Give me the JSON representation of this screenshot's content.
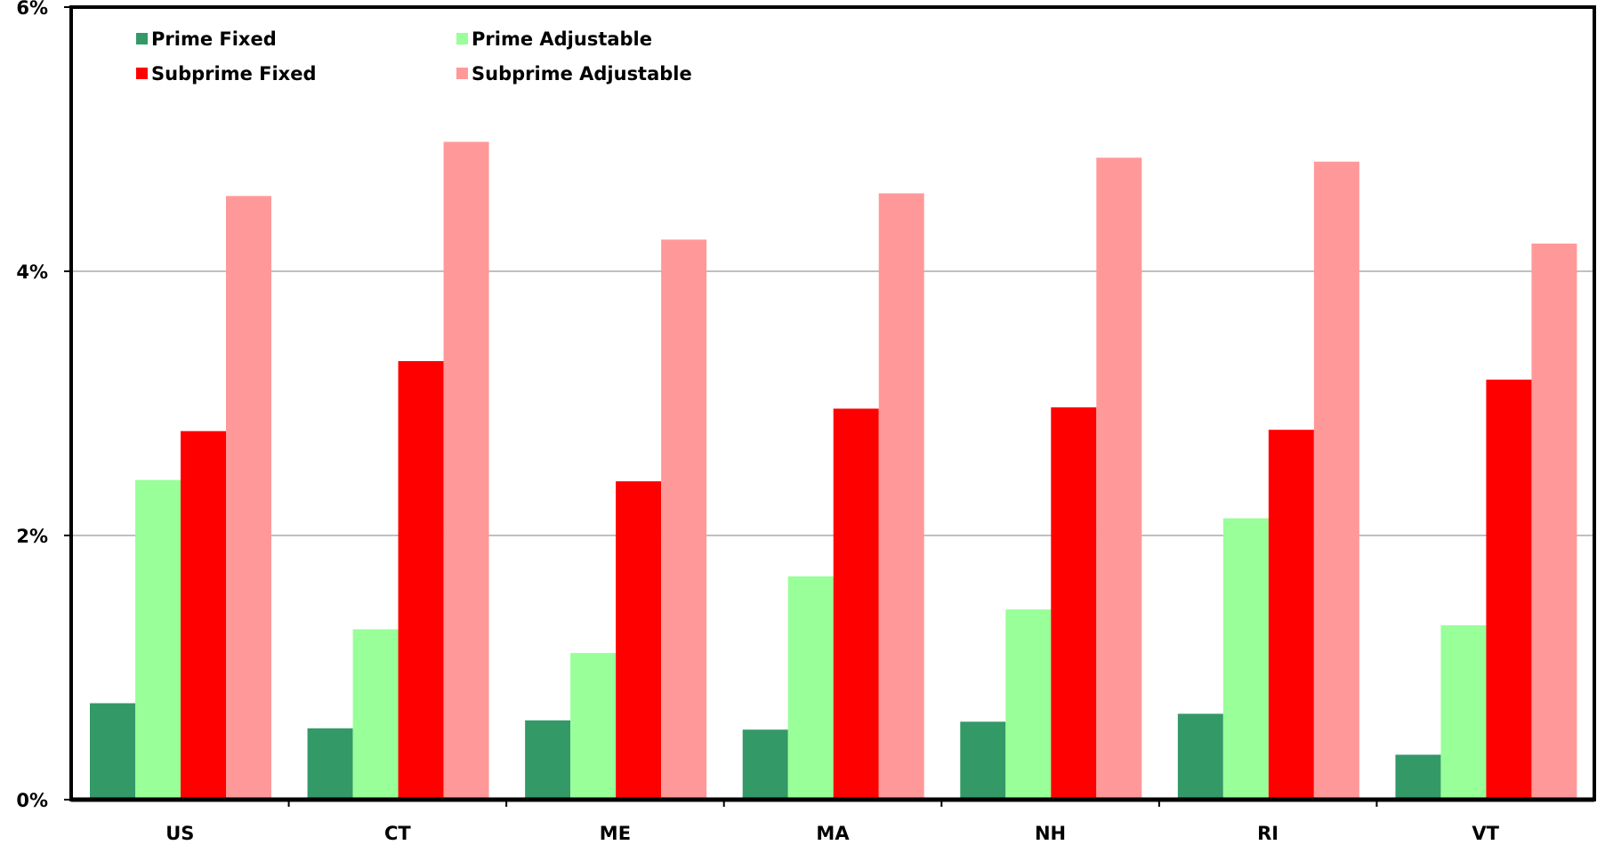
{
  "chart_data": {
    "type": "bar",
    "title": "",
    "xlabel": "",
    "ylabel": "",
    "categories": [
      "US",
      "CT",
      "ME",
      "MA",
      "NH",
      "RI",
      "VT"
    ],
    "ylim": [
      0,
      6
    ],
    "yticks": [
      0,
      2,
      4,
      6
    ],
    "ytick_labels": [
      "0%",
      "2%",
      "4%",
      "6%"
    ],
    "grid": true,
    "legend_position": "top-left",
    "series": [
      {
        "name": "Prime Fixed",
        "color": "#339966",
        "values": [
          0.73,
          0.54,
          0.6,
          0.53,
          0.59,
          0.65,
          0.34
        ]
      },
      {
        "name": "Prime Adjustable",
        "color": "#99ff99",
        "values": [
          2.42,
          1.29,
          1.11,
          1.69,
          1.44,
          2.13,
          1.32
        ]
      },
      {
        "name": "Subprime Fixed",
        "color": "#ff0000",
        "values": [
          2.79,
          3.32,
          2.41,
          2.96,
          2.97,
          2.8,
          3.18
        ]
      },
      {
        "name": "Subprime Adjustable",
        "color": "#ff9999",
        "values": [
          4.57,
          4.98,
          4.24,
          4.59,
          4.86,
          4.83,
          4.21
        ]
      }
    ]
  }
}
